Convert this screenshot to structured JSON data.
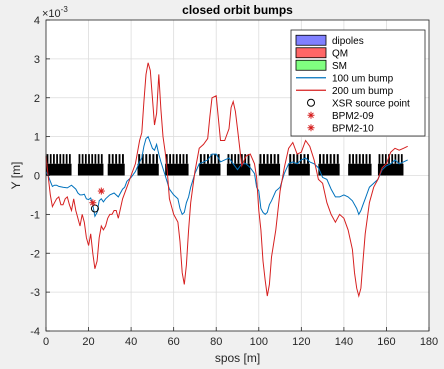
{
  "chart_data": {
    "type": "line",
    "title": "closed orbit bumps",
    "xlabel": "spos [m]",
    "ylabel": "Y [m]",
    "y_exponent_label": "×10",
    "y_exponent_power": "-3",
    "xlim": [
      0,
      180
    ],
    "ylim": [
      -4,
      4
    ],
    "x_ticks": [
      0,
      20,
      40,
      60,
      80,
      100,
      120,
      140,
      160,
      180
    ],
    "y_ticks": [
      -4,
      -3,
      -2,
      -1,
      0,
      1,
      2,
      3,
      4
    ],
    "x_tick_labels": [
      "0",
      "20",
      "40",
      "60",
      "80",
      "100",
      "120",
      "140",
      "160",
      "180"
    ],
    "y_tick_labels": [
      "-4",
      "-3",
      "-2",
      "-1",
      "0",
      "1",
      "2",
      "3",
      "4"
    ],
    "grid": true,
    "legend_position": "top-right",
    "legend": [
      {
        "label": "dipoles",
        "kind": "patch",
        "color": "#8080ff"
      },
      {
        "label": "QM",
        "kind": "patch",
        "color": "#ff6666"
      },
      {
        "label": "SM",
        "kind": "patch",
        "color": "#80ff80"
      },
      {
        "label": "100 um bump",
        "kind": "line",
        "color": "#0072bd"
      },
      {
        "label": "200 um bump",
        "kind": "line",
        "color": "#d62020"
      },
      {
        "label": "XSR source point",
        "kind": "circle",
        "color": "#000000"
      },
      {
        "label": "BPM2-09",
        "kind": "star",
        "color": "#d62020"
      },
      {
        "label": "BPM2-10",
        "kind": "star",
        "color": "#d62020"
      }
    ],
    "magnet_cells": [
      {
        "start": 0,
        "end": 12
      },
      {
        "start": 15,
        "end": 27
      },
      {
        "start": 29,
        "end": 37
      },
      {
        "start": 43,
        "end": 53
      },
      {
        "start": 56,
        "end": 67
      },
      {
        "start": 72,
        "end": 82
      },
      {
        "start": 85,
        "end": 96
      },
      {
        "start": 100,
        "end": 110
      },
      {
        "start": 114,
        "end": 124
      },
      {
        "start": 128,
        "end": 138
      },
      {
        "start": 142,
        "end": 153
      },
      {
        "start": 156,
        "end": 168
      }
    ],
    "magnet_y_low": 0.0,
    "magnet_y_high": 0.55,
    "series": [
      {
        "name": "100 um bump",
        "color": "#0072bd",
        "x": [
          0,
          1,
          2,
          3,
          4,
          5,
          6,
          8,
          10,
          12,
          14,
          15,
          16,
          17,
          18,
          19,
          20,
          21,
          22,
          23,
          24,
          25,
          26,
          27,
          28,
          30,
          32,
          34,
          36,
          37,
          38,
          40,
          42,
          44,
          45,
          46,
          47,
          48,
          49,
          50,
          51,
          52,
          53,
          54,
          56,
          58,
          60,
          62,
          63,
          64,
          65,
          66,
          67,
          68,
          70,
          72,
          74,
          76,
          78,
          80,
          82,
          84,
          86,
          88,
          90,
          92,
          94,
          96,
          98,
          99,
          100,
          101,
          102,
          103,
          104,
          105,
          106,
          108,
          110,
          112,
          114,
          116,
          118,
          120,
          122,
          124,
          126,
          128,
          130,
          132,
          134,
          136,
          138,
          140,
          142,
          144,
          146,
          147,
          148,
          149,
          150,
          151,
          152,
          154,
          156,
          158,
          160,
          162,
          164,
          166,
          168,
          170
        ],
        "y": [
          0.1,
          0.0,
          -0.15,
          -0.28,
          -0.25,
          -0.25,
          -0.28,
          -0.3,
          -0.32,
          -0.25,
          -0.35,
          -0.45,
          -0.5,
          -0.5,
          -0.48,
          -0.6,
          -0.62,
          -0.58,
          -0.75,
          -1.05,
          -0.95,
          -0.65,
          -0.6,
          -0.68,
          -0.6,
          -0.5,
          -0.45,
          -0.55,
          -0.35,
          -0.3,
          -0.15,
          -0.05,
          0.1,
          0.35,
          0.45,
          0.75,
          0.95,
          1.0,
          0.85,
          0.7,
          0.65,
          0.8,
          0.55,
          0.35,
          0.0,
          -0.35,
          -0.5,
          -0.6,
          -0.85,
          -1.0,
          -0.95,
          -0.7,
          -0.55,
          -0.3,
          0.05,
          0.3,
          0.35,
          0.4,
          0.55,
          0.55,
          0.35,
          0.4,
          0.45,
          0.3,
          0.15,
          0.3,
          0.3,
          0.2,
          0.05,
          -0.3,
          -0.4,
          -0.85,
          -0.95,
          -1.0,
          -0.95,
          -0.75,
          -0.65,
          -0.4,
          -0.3,
          0.05,
          0.3,
          0.35,
          0.3,
          0.4,
          0.45,
          0.35,
          0.3,
          0.2,
          -0.05,
          -0.1,
          -0.35,
          -0.55,
          -0.55,
          -0.5,
          -0.55,
          -0.65,
          -0.85,
          -1.0,
          -0.9,
          -0.75,
          -0.6,
          -0.45,
          -0.3,
          -0.2,
          -0.1,
          0.15,
          0.25,
          0.3,
          0.4,
          0.3,
          0.35,
          0.4
        ]
      },
      {
        "name": "200 um bump",
        "color": "#d62020",
        "x": [
          0,
          1,
          2,
          3,
          4,
          5,
          6,
          7,
          8,
          9,
          10,
          11,
          12,
          13,
          14,
          15,
          16,
          17,
          18,
          19,
          20,
          21,
          22,
          23,
          24,
          25,
          26,
          27,
          28,
          29,
          30,
          31,
          32,
          33,
          34,
          36,
          38,
          40,
          42,
          44,
          45,
          46,
          47,
          48,
          49,
          50,
          51,
          52,
          53,
          54,
          55,
          56,
          57,
          58,
          60,
          62,
          63,
          64,
          65,
          66,
          67,
          68,
          70,
          72,
          74,
          76,
          77,
          78,
          80,
          82,
          84,
          86,
          87,
          88,
          89,
          90,
          92,
          94,
          96,
          98,
          99,
          100,
          101,
          102,
          103,
          104,
          105,
          106,
          108,
          110,
          112,
          114,
          116,
          118,
          120,
          122,
          124,
          126,
          128,
          130,
          132,
          134,
          136,
          138,
          140,
          142,
          144,
          145,
          146,
          147,
          148,
          149,
          150,
          151,
          152,
          154,
          156,
          158,
          160,
          162,
          164,
          166,
          168,
          170
        ],
        "y": [
          0.5,
          0.0,
          -0.5,
          -0.8,
          -0.7,
          -0.6,
          -0.55,
          -0.75,
          -0.75,
          -0.6,
          -0.55,
          -0.75,
          -0.9,
          -0.6,
          -0.9,
          -1.1,
          -1.3,
          -1.0,
          -1.2,
          -1.6,
          -1.8,
          -1.5,
          -2.0,
          -2.4,
          -2.2,
          -1.6,
          -1.3,
          -1.4,
          -1.3,
          -1.1,
          -1.0,
          -1.0,
          -0.9,
          -0.9,
          -1.1,
          -0.6,
          -0.3,
          0.0,
          0.3,
          0.9,
          1.1,
          1.9,
          2.6,
          2.9,
          2.7,
          2.0,
          1.3,
          1.6,
          2.6,
          1.7,
          1.0,
          0.6,
          0.1,
          -0.6,
          -1.0,
          -1.2,
          -1.7,
          -2.5,
          -2.8,
          -2.3,
          -1.4,
          -0.7,
          0.1,
          0.7,
          0.8,
          0.95,
          1.5,
          2.0,
          2.05,
          0.9,
          0.9,
          1.2,
          1.75,
          1.9,
          1.65,
          1.2,
          0.25,
          0.5,
          0.55,
          0.3,
          -0.05,
          -0.9,
          -1.4,
          -2.2,
          -2.7,
          -3.1,
          -2.8,
          -2.1,
          -1.4,
          -0.4,
          0.2,
          0.7,
          0.85,
          0.55,
          0.6,
          0.9,
          0.75,
          0.4,
          -0.1,
          -0.2,
          -0.7,
          -1.0,
          -1.2,
          -1.0,
          -1.1,
          -1.4,
          -1.9,
          -2.5,
          -2.9,
          -3.1,
          -2.9,
          -2.2,
          -1.5,
          -1.1,
          -0.7,
          -0.3,
          -0.1,
          0.2,
          0.3,
          0.6,
          0.7,
          0.65,
          0.7,
          0.75
        ]
      }
    ],
    "markers": [
      {
        "name": "XSR source point",
        "type": "circle",
        "color": "#000000",
        "points": [
          {
            "x": 23,
            "y": -0.85
          }
        ]
      },
      {
        "name": "BPM2-09",
        "type": "star",
        "color": "#d62020",
        "points": [
          {
            "x": 22,
            "y": -0.7
          }
        ]
      },
      {
        "name": "BPM2-10",
        "type": "star",
        "color": "#d62020",
        "points": [
          {
            "x": 26,
            "y": -0.4
          }
        ]
      }
    ]
  }
}
